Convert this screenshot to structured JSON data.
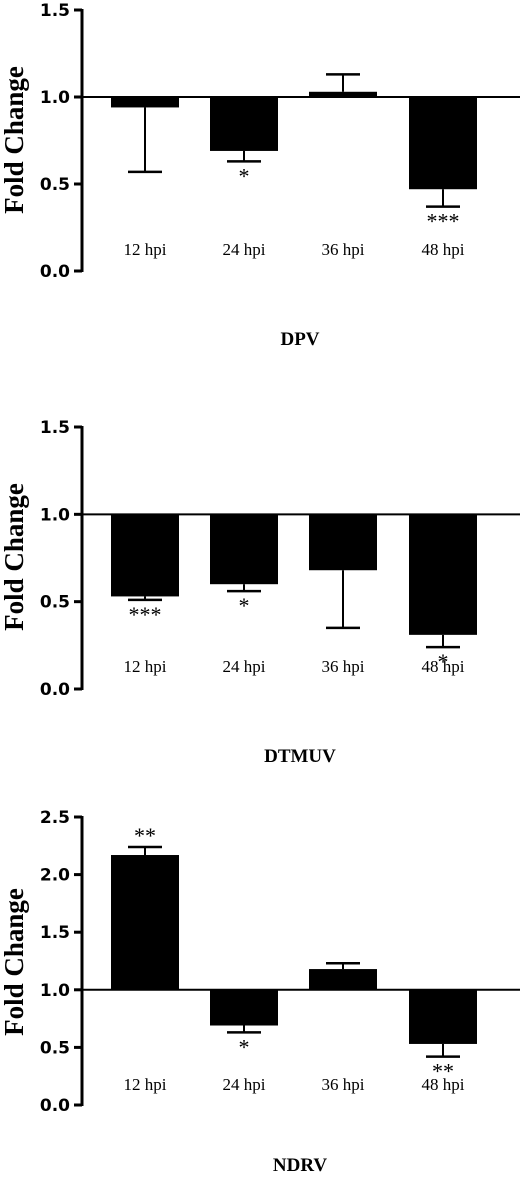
{
  "chart_data": [
    {
      "type": "bar",
      "title": "DPV",
      "ylabel": "Fold Change",
      "ylim": [
        0,
        1.5
      ],
      "yticks": [
        "0.0",
        "0.5",
        "1.0",
        "1.5"
      ],
      "baseline": 1.0,
      "categories": [
        "12 hpi",
        "24 hpi",
        "36 hpi",
        "48 hpi"
      ],
      "values": [
        0.94,
        0.69,
        1.03,
        0.47
      ],
      "error": [
        0.37,
        0.06,
        0.1,
        0.1
      ],
      "significance": [
        "",
        "*",
        "",
        "***"
      ]
    },
    {
      "type": "bar",
      "title": "DTMUV",
      "ylabel": "Fold Change",
      "ylim": [
        0,
        1.5
      ],
      "yticks": [
        "0.0",
        "0.5",
        "1.0",
        "1.5"
      ],
      "baseline": 1.0,
      "categories": [
        "12 hpi",
        "24 hpi",
        "36 hpi",
        "48 hpi"
      ],
      "values": [
        0.53,
        0.6,
        0.68,
        0.31
      ],
      "error": [
        0.02,
        0.04,
        0.33,
        0.07
      ],
      "significance": [
        "***",
        "*",
        "",
        "*"
      ]
    },
    {
      "type": "bar",
      "title": "NDRV",
      "ylabel": "Fold Change",
      "ylim": [
        0,
        2.5
      ],
      "yticks": [
        "0.0",
        "0.5",
        "1.0",
        "1.5",
        "2.0",
        "2.5"
      ],
      "baseline": 1.0,
      "categories": [
        "12 hpi",
        "24 hpi",
        "36 hpi",
        "48 hpi"
      ],
      "values": [
        2.17,
        0.69,
        1.18,
        0.53
      ],
      "error": [
        0.07,
        0.06,
        0.05,
        0.11
      ],
      "significance": [
        "**",
        "*",
        "",
        "**"
      ]
    }
  ]
}
